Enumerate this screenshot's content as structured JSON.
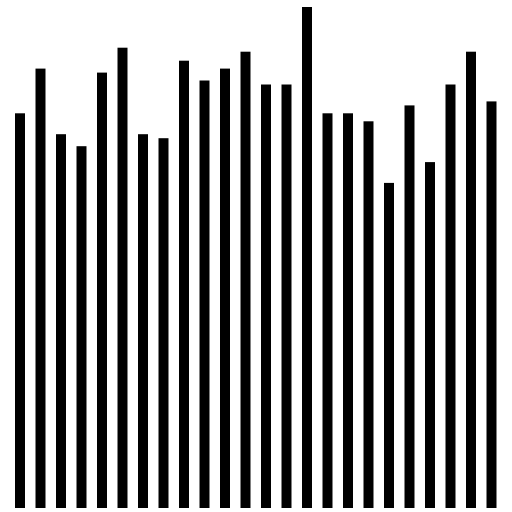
{
  "chart_data": {
    "type": "bar",
    "bar_color": "#000000",
    "background": "#ffffff",
    "grid": false,
    "axes_visible": false,
    "ylim": [
      0,
      507
    ],
    "values": [
      397,
      442,
      376,
      364,
      438,
      463,
      376,
      372,
      450,
      430,
      442,
      459,
      426,
      426,
      504,
      397,
      397,
      389,
      327,
      405,
      348,
      426,
      459,
      409
    ]
  }
}
